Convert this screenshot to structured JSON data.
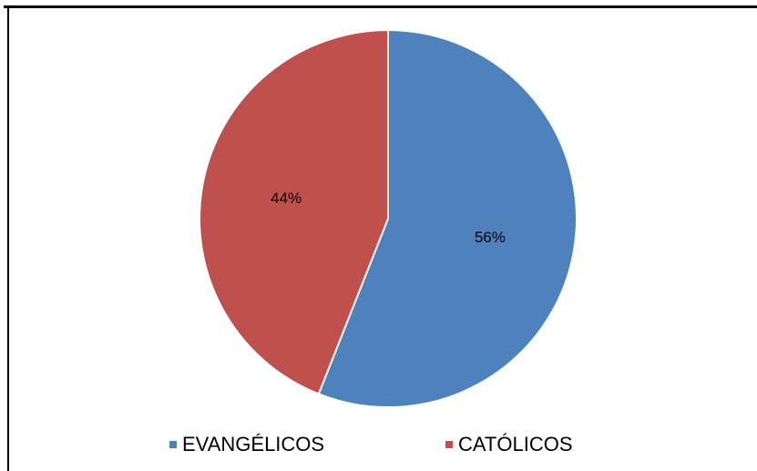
{
  "chart_data": {
    "type": "pie",
    "title": "",
    "categories": [
      "EVANGÉLICOS",
      "CATÓLICOS"
    ],
    "values": [
      56,
      44
    ],
    "data_labels": [
      "56%",
      "44%"
    ],
    "colors": [
      "#4F81BD",
      "#C0504D"
    ],
    "legend_position": "bottom",
    "start": "top, clockwise"
  }
}
